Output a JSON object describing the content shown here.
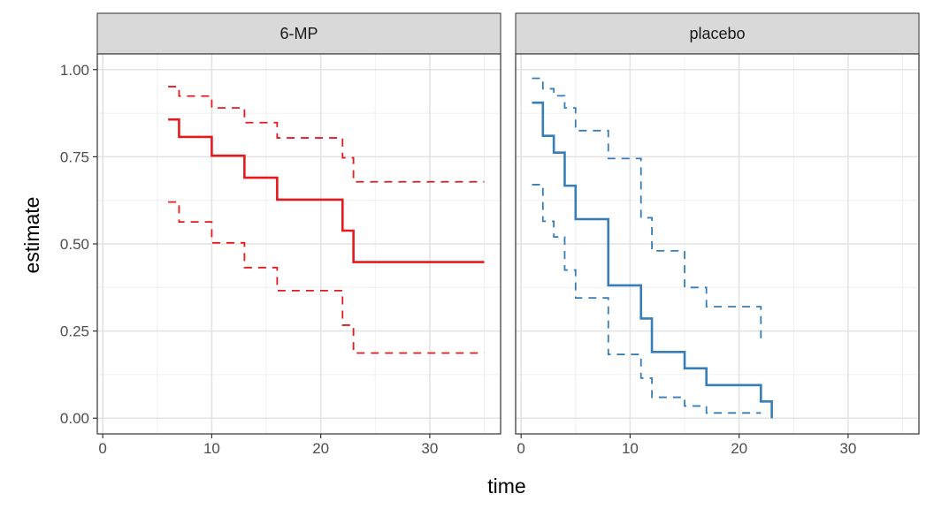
{
  "chart_data": {
    "type": "line",
    "xlabel": "time",
    "ylabel": "estimate",
    "xlim": [
      -0.5,
      36.5
    ],
    "ylim": [
      -0.045,
      1.045
    ],
    "x_ticks": [
      0,
      10,
      20,
      30
    ],
    "y_ticks": [
      0.0,
      0.25,
      0.5,
      0.75,
      1.0
    ],
    "x_tick_labels": [
      "0",
      "10",
      "20",
      "30"
    ],
    "y_tick_labels": [
      "0.00",
      "0.25",
      "0.50",
      "0.75",
      "1.00"
    ],
    "grid": true,
    "panels": [
      {
        "label": "6-MP",
        "color": "#e41a1c",
        "estimate": {
          "x": [
            6,
            7,
            10,
            13,
            16,
            22,
            23,
            35
          ],
          "y": [
            0.857,
            0.807,
            0.753,
            0.69,
            0.627,
            0.538,
            0.448,
            0.448
          ]
        },
        "upper": {
          "x": [
            6,
            7,
            10,
            13,
            16,
            22,
            23,
            35
          ],
          "y": [
            0.951,
            0.924,
            0.89,
            0.848,
            0.804,
            0.747,
            0.678,
            0.678
          ]
        },
        "lower": {
          "x": [
            6,
            7,
            10,
            13,
            16,
            22,
            23,
            35
          ],
          "y": [
            0.62,
            0.563,
            0.503,
            0.432,
            0.366,
            0.267,
            0.187,
            0.187
          ]
        }
      },
      {
        "label": "placebo",
        "color": "#377eb8",
        "estimate": {
          "x": [
            1,
            2,
            3,
            4,
            5,
            8,
            11,
            12,
            15,
            17,
            22,
            23
          ],
          "y": [
            0.905,
            0.81,
            0.762,
            0.667,
            0.571,
            0.381,
            0.286,
            0.19,
            0.143,
            0.095,
            0.048,
            0.0
          ]
        },
        "upper": {
          "x": [
            1,
            2,
            3,
            4,
            5,
            8,
            11,
            12,
            15,
            17,
            22
          ],
          "y": [
            0.975,
            0.945,
            0.925,
            0.89,
            0.825,
            0.745,
            0.575,
            0.48,
            0.375,
            0.32,
            0.26
          ]
        },
        "upper_end_y": 0.212,
        "lower": {
          "x": [
            1,
            2,
            3,
            4,
            5,
            8,
            11,
            12,
            15,
            17,
            22
          ],
          "y": [
            0.67,
            0.565,
            0.52,
            0.425,
            0.345,
            0.183,
            0.115,
            0.06,
            0.035,
            0.015,
            0.015
          ]
        }
      }
    ]
  }
}
